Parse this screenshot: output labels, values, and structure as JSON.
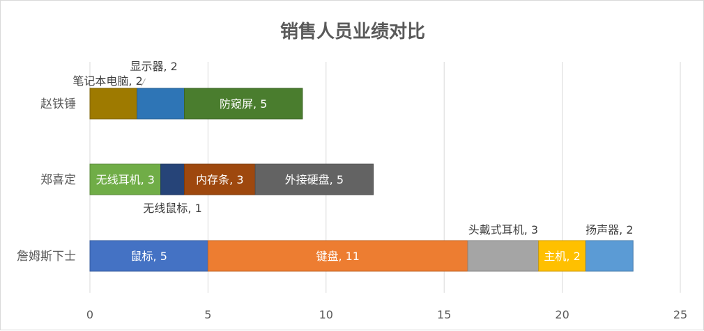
{
  "chart_data": {
    "type": "bar",
    "orientation": "horizontal",
    "stacked": true,
    "title": "销售人员业绩对比",
    "xlim": [
      0,
      25
    ],
    "xticks": [
      "0",
      "5",
      "10",
      "15",
      "20",
      "25"
    ],
    "grid": "vertical",
    "legend": "none",
    "rows": [
      {
        "name": "赵铁锤",
        "segments": [
          {
            "label": "笔记本电脑, 2",
            "value": 2,
            "color": "#9E7A00",
            "label_position": "above-left"
          },
          {
            "label": "显示器, 2",
            "value": 2,
            "color": "#2E75B6",
            "label_position": "above-leader"
          },
          {
            "label": "防窥屏, 5",
            "value": 5,
            "color": "#4A7D2E",
            "label_position": "inside"
          }
        ]
      },
      {
        "name": "郑喜定",
        "segments": [
          {
            "label": "无线耳机, 3",
            "value": 3,
            "color": "#70AD47",
            "label_position": "inside"
          },
          {
            "label": "无线鼠标, 1",
            "value": 1,
            "color": "#264478",
            "label_position": "below"
          },
          {
            "label": "内存条, 3",
            "value": 3,
            "color": "#9E480E",
            "label_position": "inside"
          },
          {
            "label": "外接硬盘, 5",
            "value": 5,
            "color": "#636363",
            "label_position": "inside"
          }
        ]
      },
      {
        "name": "詹姆斯下士",
        "segments": [
          {
            "label": "鼠标, 5",
            "value": 5,
            "color": "#4472C4",
            "label_position": "inside"
          },
          {
            "label": "键盘, 11",
            "value": 11,
            "color": "#ED7D31",
            "label_position": "inside"
          },
          {
            "label": "头戴式耳机, 3",
            "value": 3,
            "color": "#A5A5A5",
            "label_position": "above"
          },
          {
            "label": "主机, 2",
            "value": 2,
            "color": "#FFC000",
            "label_position": "inside"
          },
          {
            "label": "扬声器, 2",
            "value": 2,
            "color": "#5B9BD5",
            "label_position": "above"
          }
        ]
      }
    ]
  }
}
